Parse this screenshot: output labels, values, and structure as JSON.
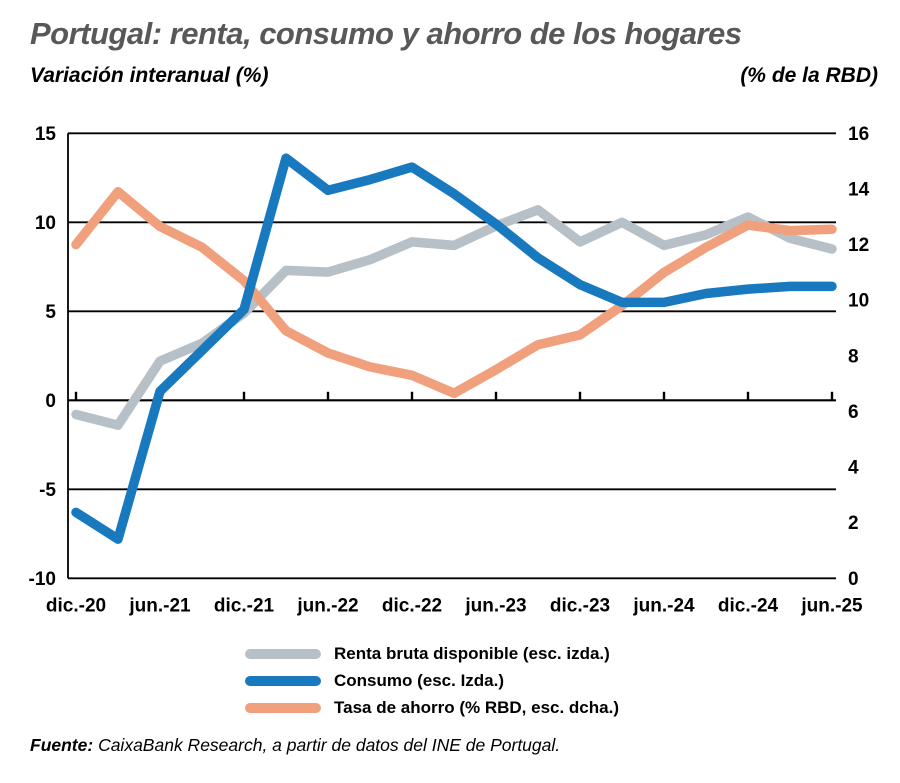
{
  "header": {
    "title": "Portugal: renta, consumo y ahorro de los hogares",
    "subtitle_left": "Variación interanual (%)",
    "subtitle_right": "(% de la RBD)"
  },
  "chart_data": {
    "type": "line",
    "title": "Portugal: renta, consumo y ahorro de los hogares",
    "left_axis": {
      "label": "Variación interanual (%)",
      "min": -10,
      "max": 15,
      "tick_labels": [
        "15",
        "10",
        "5",
        "0",
        "-5",
        "-10"
      ],
      "tick_values": [
        15,
        10,
        5,
        0,
        -5,
        -10
      ]
    },
    "right_axis": {
      "label": "(% de la RBD)",
      "min": 0,
      "max": 16,
      "tick_labels": [
        "16",
        "14",
        "12",
        "10",
        "8",
        "6",
        "4",
        "2",
        "0"
      ],
      "tick_values": [
        16,
        14,
        12,
        10,
        8,
        6,
        4,
        2,
        0
      ]
    },
    "x_tick_labels": [
      "dic.-20",
      "jun.-21",
      "dic.-21",
      "jun.-22",
      "dic.-22",
      "jun.-23",
      "dic.-23",
      "jun.-24",
      "dic.-24",
      "jun.-25"
    ],
    "points_per_x_label": 2,
    "grid": "horizontal-only",
    "legend_position": "bottom",
    "series": [
      {
        "name": "Renta bruta disponible (esc. izda.)",
        "axis": "left",
        "color": "#b7c0c6",
        "z": 0,
        "values": [
          -0.8,
          -1.4,
          2.2,
          3.2,
          4.9,
          7.3,
          7.2,
          7.9,
          8.9,
          8.7,
          9.8,
          10.7,
          8.9,
          10.0,
          8.7,
          9.3,
          10.3,
          9.1,
          8.5
        ]
      },
      {
        "name": "Consumo (esc. izda.)",
        "axis": "left",
        "color": "#1879bf",
        "z": 2,
        "values": [
          -6.3,
          -7.8,
          0.5,
          2.8,
          5.1,
          13.6,
          11.8,
          12.4,
          13.1,
          11.6,
          9.9,
          8.0,
          6.5,
          5.5,
          5.5,
          6.0,
          6.25,
          6.4,
          6.4
        ]
      },
      {
        "name": "Tasa de ahorro (% RBD, esc. dcha.)",
        "axis": "right",
        "color": "#f0a07c",
        "z": 1,
        "values": [
          12.0,
          13.9,
          12.65,
          11.9,
          10.7,
          8.9,
          8.1,
          7.6,
          7.3,
          6.65,
          7.5,
          8.4,
          8.75,
          9.8,
          11.0,
          11.9,
          12.7,
          12.5,
          12.55
        ]
      }
    ]
  },
  "legend": {
    "items": [
      {
        "label": "Renta bruta disponible (esc. izda.)",
        "color": "#b7c0c6"
      },
      {
        "label": "Consumo (esc. Izda.)",
        "color": "#1879bf"
      },
      {
        "label": "Tasa de ahorro (% RBD, esc. dcha.)",
        "color": "#f0a07c"
      }
    ]
  },
  "footer": {
    "source_label": "Fuente:",
    "source_text": " CaixaBank Research, a partir de datos del INE de Portugal."
  }
}
